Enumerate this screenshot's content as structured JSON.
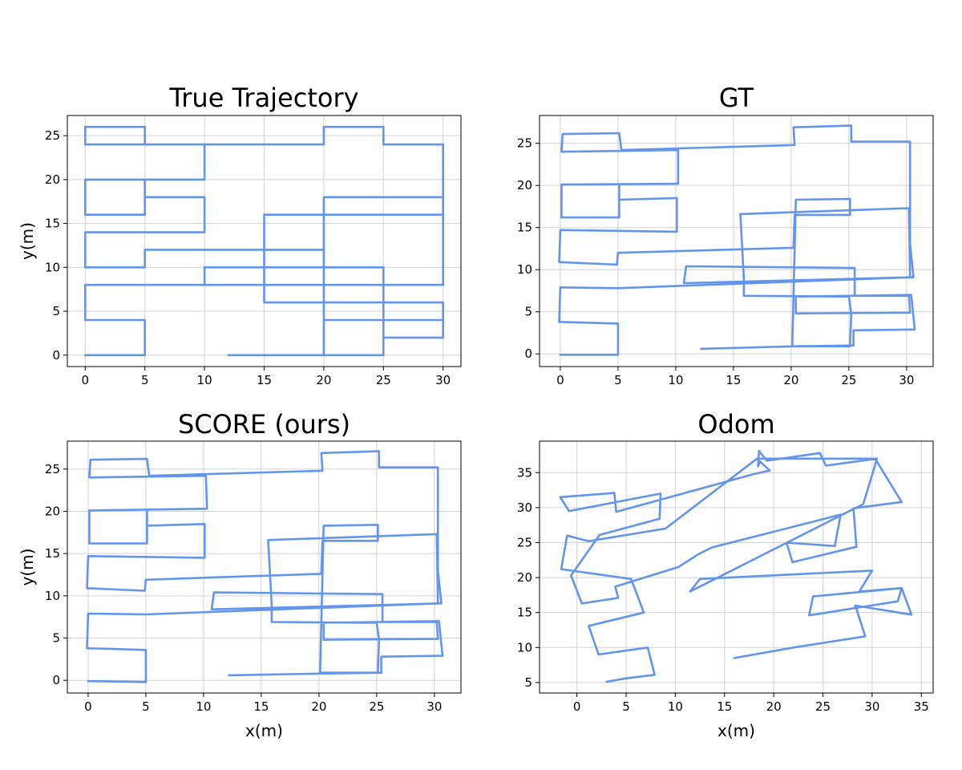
{
  "style": {
    "line_color": "#6495ed",
    "grid_color": "#d3d3d3",
    "grid": true
  },
  "chart_data": [
    {
      "type": "line",
      "title": "True Trajectory",
      "xlabel": "",
      "ylabel": "y(m)",
      "xlim": [
        -1.5,
        31.5
      ],
      "ylim": [
        -1.3,
        27.3
      ],
      "xticks": [
        0,
        5,
        10,
        15,
        20,
        25,
        30
      ],
      "yticks": [
        0,
        5,
        10,
        15,
        20,
        25
      ],
      "series": [
        {
          "points": [
            [
              12,
              0
            ],
            [
              25,
              0
            ],
            [
              25,
              2
            ],
            [
              30,
              2
            ],
            [
              30,
              6
            ],
            [
              20,
              6
            ],
            [
              20,
              4
            ],
            [
              30,
              4
            ],
            [
              30,
              6
            ],
            [
              25,
              6
            ],
            [
              25,
              10
            ],
            [
              10,
              10
            ],
            [
              10,
              8
            ],
            [
              30,
              8
            ],
            [
              30,
              24
            ],
            [
              25,
              24
            ],
            [
              25,
              26
            ],
            [
              20,
              26
            ],
            [
              20,
              24
            ],
            [
              5,
              24
            ],
            [
              5,
              26
            ],
            [
              0,
              26
            ],
            [
              0,
              24
            ],
            [
              10,
              24
            ],
            [
              10,
              20
            ],
            [
              0,
              20
            ],
            [
              0,
              16
            ],
            [
              5,
              16
            ],
            [
              5,
              20
            ],
            [
              5,
              18
            ],
            [
              10,
              18
            ],
            [
              10,
              14
            ],
            [
              0,
              14
            ],
            [
              0,
              10
            ],
            [
              5,
              10
            ],
            [
              5,
              12
            ],
            [
              20,
              12
            ],
            [
              20,
              16
            ],
            [
              30,
              16
            ],
            [
              30,
              18
            ],
            [
              20,
              18
            ],
            [
              20,
              0
            ],
            [
              25,
              0
            ],
            [
              25,
              4
            ],
            [
              25,
              6
            ],
            [
              15,
              6
            ],
            [
              15,
              8
            ],
            [
              15,
              16
            ],
            [
              30,
              16
            ],
            [
              30,
              8
            ],
            [
              5,
              8
            ],
            [
              0,
              8
            ],
            [
              0,
              4
            ],
            [
              5,
              4
            ],
            [
              5,
              0
            ],
            [
              0,
              0
            ]
          ]
        }
      ]
    },
    {
      "type": "line",
      "title": "GT",
      "xlabel": "",
      "ylabel": "",
      "xlim": [
        -1.8,
        32.3
      ],
      "ylim": [
        -1.5,
        28.3
      ],
      "xticks": [
        0,
        5,
        10,
        15,
        20,
        25,
        30
      ],
      "yticks": [
        0,
        5,
        10,
        15,
        20,
        25
      ],
      "series": [
        {
          "points": [
            [
              12.2,
              0.6
            ],
            [
              20.1,
              0.9
            ],
            [
              25.4,
              1
            ],
            [
              25.4,
              2.8
            ],
            [
              30.7,
              2.9
            ],
            [
              30.4,
              7
            ],
            [
              20.4,
              6.8
            ],
            [
              20.4,
              4.8
            ],
            [
              30.3,
              4.9
            ],
            [
              30.2,
              6.9
            ],
            [
              25.5,
              6.9
            ],
            [
              25.5,
              10.2
            ],
            [
              10.9,
              10.4
            ],
            [
              10.7,
              8.4
            ],
            [
              30.6,
              9.1
            ],
            [
              30.3,
              13
            ],
            [
              30.3,
              25.2
            ],
            [
              25.2,
              25.2
            ],
            [
              25.2,
              27.1
            ],
            [
              20.2,
              26.9
            ],
            [
              20.3,
              24.8
            ],
            [
              5.3,
              24.2
            ],
            [
              5.1,
              26.2
            ],
            [
              0.2,
              26.1
            ],
            [
              0.1,
              24
            ],
            [
              10.2,
              24.2
            ],
            [
              10.2,
              20.2
            ],
            [
              0.1,
              20.1
            ],
            [
              0.1,
              16.2
            ],
            [
              5.1,
              16.2
            ],
            [
              5.1,
              20.1
            ],
            [
              5.1,
              18.3
            ],
            [
              10.1,
              18.5
            ],
            [
              10.1,
              14.5
            ],
            [
              0,
              14.7
            ],
            [
              -0.1,
              10.9
            ],
            [
              4.9,
              10.6
            ],
            [
              5,
              12
            ],
            [
              20.2,
              12.6
            ],
            [
              20.3,
              16.5
            ],
            [
              25.1,
              16.5
            ],
            [
              25.1,
              18.4
            ],
            [
              20.4,
              18.3
            ],
            [
              20.1,
              0.9
            ],
            [
              25.1,
              0.9
            ],
            [
              25.2,
              4.8
            ],
            [
              25,
              6.8
            ],
            [
              15.9,
              6.9
            ],
            [
              15.9,
              8.9
            ],
            [
              15.6,
              16.6
            ],
            [
              30.2,
              17.3
            ],
            [
              30.3,
              9.1
            ],
            [
              5,
              7.8
            ],
            [
              0,
              7.9
            ],
            [
              -0.1,
              3.8
            ],
            [
              5,
              3.6
            ],
            [
              5,
              -0.1
            ],
            [
              0,
              -0.1
            ]
          ]
        }
      ]
    },
    {
      "type": "line",
      "title": "SCORE (ours)",
      "xlabel": "x(m)",
      "ylabel": "y(m)",
      "xlim": [
        -1.8,
        32.3
      ],
      "ylim": [
        -1.5,
        28.3
      ],
      "xticks": [
        0,
        5,
        10,
        15,
        20,
        25,
        30
      ],
      "yticks": [
        0,
        5,
        10,
        15,
        20,
        25
      ],
      "series": [
        {
          "points": [
            [
              12.2,
              0.6
            ],
            [
              20.1,
              0.8
            ],
            [
              25.4,
              0.9
            ],
            [
              25.4,
              2.8
            ],
            [
              30.7,
              2.9
            ],
            [
              30.4,
              7
            ],
            [
              20.4,
              6.8
            ],
            [
              20.4,
              4.8
            ],
            [
              30.3,
              4.9
            ],
            [
              30.2,
              6.9
            ],
            [
              25.5,
              6.9
            ],
            [
              25.5,
              10.2
            ],
            [
              10.9,
              10.4
            ],
            [
              10.7,
              8.4
            ],
            [
              30.6,
              9.1
            ],
            [
              30.3,
              13
            ],
            [
              30.3,
              25.2
            ],
            [
              25.2,
              25.2
            ],
            [
              25.2,
              27.1
            ],
            [
              20.2,
              26.9
            ],
            [
              20.3,
              24.8
            ],
            [
              5.3,
              24.2
            ],
            [
              5.1,
              26.2
            ],
            [
              0.2,
              26.1
            ],
            [
              0.1,
              24
            ],
            [
              10.2,
              24.2
            ],
            [
              10.3,
              20.3
            ],
            [
              0.1,
              20.1
            ],
            [
              0.1,
              16.2
            ],
            [
              5.1,
              16.2
            ],
            [
              5.1,
              20.1
            ],
            [
              5.1,
              18.3
            ],
            [
              10.1,
              18.5
            ],
            [
              10.1,
              14.5
            ],
            [
              0,
              14.7
            ],
            [
              -0.1,
              10.9
            ],
            [
              4.9,
              10.6
            ],
            [
              5,
              11.9
            ],
            [
              20.2,
              12.6
            ],
            [
              20.3,
              16.5
            ],
            [
              25.1,
              16.5
            ],
            [
              25.1,
              18.4
            ],
            [
              20.4,
              18.3
            ],
            [
              20.1,
              0.9
            ],
            [
              25.1,
              0.9
            ],
            [
              25.2,
              4.8
            ],
            [
              25,
              6.8
            ],
            [
              15.9,
              6.9
            ],
            [
              15.9,
              8.9
            ],
            [
              15.6,
              16.6
            ],
            [
              30.2,
              17.3
            ],
            [
              30.3,
              9.1
            ],
            [
              5,
              7.8
            ],
            [
              0,
              7.9
            ],
            [
              -0.1,
              3.8
            ],
            [
              5,
              3.6
            ],
            [
              5,
              -0.2
            ],
            [
              0,
              -0.1
            ]
          ]
        }
      ]
    },
    {
      "type": "line",
      "title": "Odom",
      "xlabel": "x(m)",
      "ylabel": "",
      "xlim": [
        -3.8,
        36.2
      ],
      "ylim": [
        3.5,
        39.5
      ],
      "xticks": [
        0,
        5,
        10,
        15,
        20,
        25,
        30,
        35
      ],
      "yticks": [
        5,
        10,
        15,
        20,
        25,
        30,
        35
      ],
      "series": [
        {
          "points": [
            [
              16,
              8.5
            ],
            [
              22,
              10
            ],
            [
              29.3,
              11.6
            ],
            [
              28.3,
              16
            ],
            [
              34,
              14.7
            ],
            [
              33,
              18.5
            ],
            [
              24,
              17.3
            ],
            [
              23.6,
              14.6
            ],
            [
              32.6,
              16.6
            ],
            [
              33,
              18.5
            ],
            [
              28.7,
              18
            ],
            [
              30,
              21
            ],
            [
              12.5,
              19.8
            ],
            [
              11.5,
              18
            ],
            [
              29.1,
              30.5
            ],
            [
              30.5,
              37
            ],
            [
              25.3,
              36
            ],
            [
              24.7,
              37.8
            ],
            [
              19.3,
              36.7
            ],
            [
              18.5,
              38.1
            ],
            [
              18.4,
              35.9
            ],
            [
              18.6,
              36.6
            ],
            [
              19.6,
              35.3
            ],
            [
              18,
              34.8
            ],
            [
              4,
              29.4
            ],
            [
              3.8,
              32.1
            ],
            [
              2,
              31.9
            ],
            [
              -1.7,
              31.5
            ],
            [
              -0.8,
              29.5
            ],
            [
              8.5,
              32
            ],
            [
              8.4,
              28.4
            ],
            [
              2.3,
              26.1
            ],
            [
              -0.6,
              20.3
            ],
            [
              0.5,
              16.3
            ],
            [
              4.2,
              17.1
            ],
            [
              3.9,
              18.7
            ],
            [
              10.3,
              21.5
            ],
            [
              12.3,
              23.3
            ],
            [
              13.7,
              24.3
            ],
            [
              26.8,
              29
            ],
            [
              26.2,
              24.5
            ],
            [
              21.3,
              25
            ],
            [
              21.9,
              22.2
            ],
            [
              28.4,
              24.4
            ],
            [
              28.1,
              29.9
            ],
            [
              33,
              30.8
            ],
            [
              30.3,
              37
            ],
            [
              18.3,
              37
            ],
            [
              9,
              27
            ],
            [
              1.2,
              25.2
            ],
            [
              -1,
              26
            ],
            [
              -1.6,
              21.2
            ],
            [
              5.5,
              19.8
            ],
            [
              6.8,
              15
            ],
            [
              1.2,
              13.1
            ],
            [
              2.2,
              9
            ],
            [
              7.2,
              10
            ],
            [
              7.9,
              6.1
            ],
            [
              5,
              5.6
            ],
            [
              3,
              5.1
            ]
          ]
        }
      ]
    }
  ]
}
